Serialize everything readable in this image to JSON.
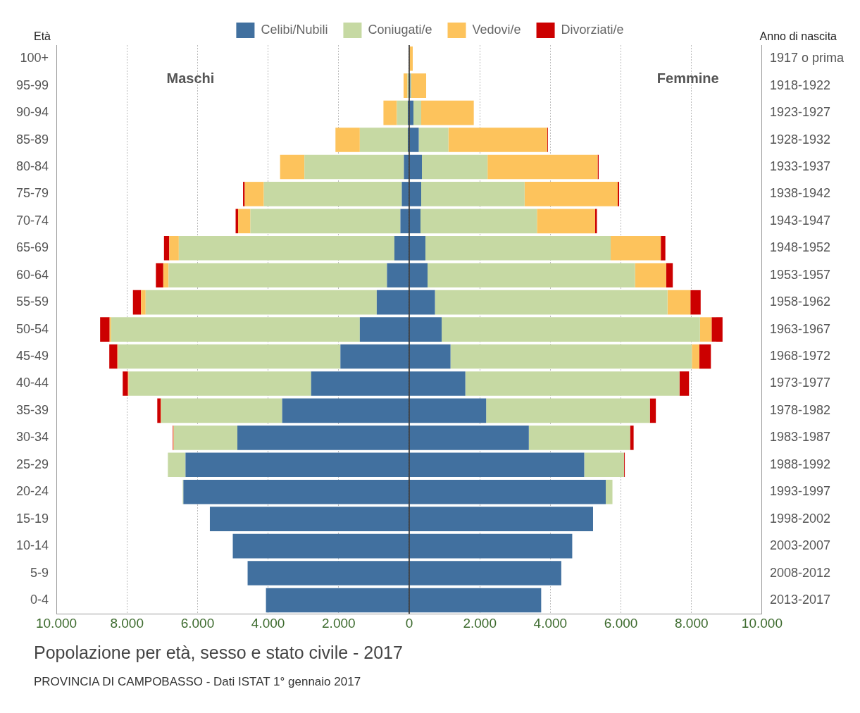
{
  "chart_data": {
    "type": "bar",
    "orientation": "horizontal",
    "stacked": true,
    "title": "Popolazione per età, sesso e stato civile - 2017",
    "subtitle": "PROVINCIA DI CAMPOBASSO - Dati ISTAT 1° gennaio 2017",
    "ylabel": "Età",
    "y2label": "Anno di nascita",
    "annotations": [
      "Maschi",
      "Femmine"
    ],
    "categories": [
      "100+",
      "95-99",
      "90-94",
      "85-89",
      "80-84",
      "75-79",
      "70-74",
      "65-69",
      "60-64",
      "55-59",
      "50-54",
      "45-49",
      "40-44",
      "35-39",
      "30-34",
      "25-29",
      "20-24",
      "15-19",
      "10-14",
      "5-9",
      "0-4"
    ],
    "y2_categories": [
      "1917 o prima",
      "1918-1922",
      "1923-1927",
      "1928-1932",
      "1933-1937",
      "1938-1942",
      "1943-1947",
      "1948-1952",
      "1953-1957",
      "1958-1962",
      "1963-1967",
      "1968-1972",
      "1973-1977",
      "1978-1982",
      "1983-1987",
      "1988-1992",
      "1993-1997",
      "1998-2002",
      "2003-2007",
      "2008-2012",
      "2013-2017"
    ],
    "series": [
      {
        "name": "Celibi/Nubili",
        "color": "#41709f",
        "values": [
          0,
          0,
          -40,
          -40,
          -150,
          -210,
          -250,
          -420,
          -630,
          -920,
          -1400,
          -1950,
          -2780,
          -3600,
          -4870,
          -6340,
          -6400,
          -5650,
          -5000,
          -4580,
          -4060
        ]
      },
      {
        "name": "Coniugati/e",
        "color": "#c6d9a3",
        "values": [
          0,
          -50,
          -310,
          -1360,
          -2820,
          -3910,
          -4250,
          -6110,
          -6190,
          -6550,
          -7050,
          -6300,
          -5170,
          -3430,
          -1800,
          -500,
          -20,
          0,
          0,
          0,
          0
        ]
      },
      {
        "name": "Vedovi/e",
        "color": "#fdc35c",
        "values": [
          0,
          -110,
          -380,
          -690,
          -690,
          -540,
          -350,
          -270,
          -150,
          -130,
          -40,
          -20,
          -20,
          -10,
          -10,
          0,
          0,
          0,
          0,
          0,
          0
        ]
      },
      {
        "name": "Divorziati/e",
        "color": "#cc0000",
        "values": [
          0,
          0,
          0,
          0,
          0,
          -50,
          -70,
          -150,
          -210,
          -230,
          -270,
          -230,
          -150,
          -100,
          -20,
          0,
          0,
          0,
          0,
          0,
          0
        ]
      },
      {
        "color": "#41709f",
        "values": [
          0,
          30,
          120,
          270,
          360,
          340,
          320,
          460,
          520,
          730,
          920,
          1170,
          1590,
          2180,
          3390,
          4960,
          5570,
          5210,
          4620,
          4310,
          3740
        ]
      },
      {
        "color": "#c6d9a3",
        "values": [
          0,
          30,
          220,
          840,
          1860,
          2930,
          3300,
          5250,
          5880,
          6590,
          7320,
          6840,
          6070,
          4640,
          2870,
          1130,
          190,
          0,
          0,
          0,
          0
        ]
      },
      {
        "color": "#fdc35c",
        "values": [
          100,
          420,
          1490,
          2800,
          3120,
          2640,
          1650,
          1420,
          880,
          650,
          330,
          210,
          0,
          0,
          0,
          0,
          0,
          0,
          0,
          0,
          0
        ]
      },
      {
        "color": "#cc0000",
        "values": [
          0,
          0,
          0,
          20,
          30,
          40,
          50,
          130,
          190,
          290,
          310,
          330,
          270,
          170,
          100,
          20,
          0,
          0,
          0,
          0,
          0
        ]
      }
    ],
    "xlim": [
      -10000,
      10000
    ],
    "xticks": [
      {
        "value": -10000,
        "label": "10.000"
      },
      {
        "value": -8000,
        "label": "8.000"
      },
      {
        "value": -6000,
        "label": "6.000"
      },
      {
        "value": -4000,
        "label": "4.000"
      },
      {
        "value": -2000,
        "label": "2.000"
      },
      0,
      {
        "value": 2000,
        "label": "2.000"
      },
      {
        "value": 4000,
        "label": "4.000"
      },
      {
        "value": 6000,
        "label": "6.000"
      },
      {
        "value": 8000,
        "label": "8.000"
      },
      {
        "value": 10000,
        "label": "10.000"
      }
    ],
    "grid": "x",
    "legend": "top"
  }
}
